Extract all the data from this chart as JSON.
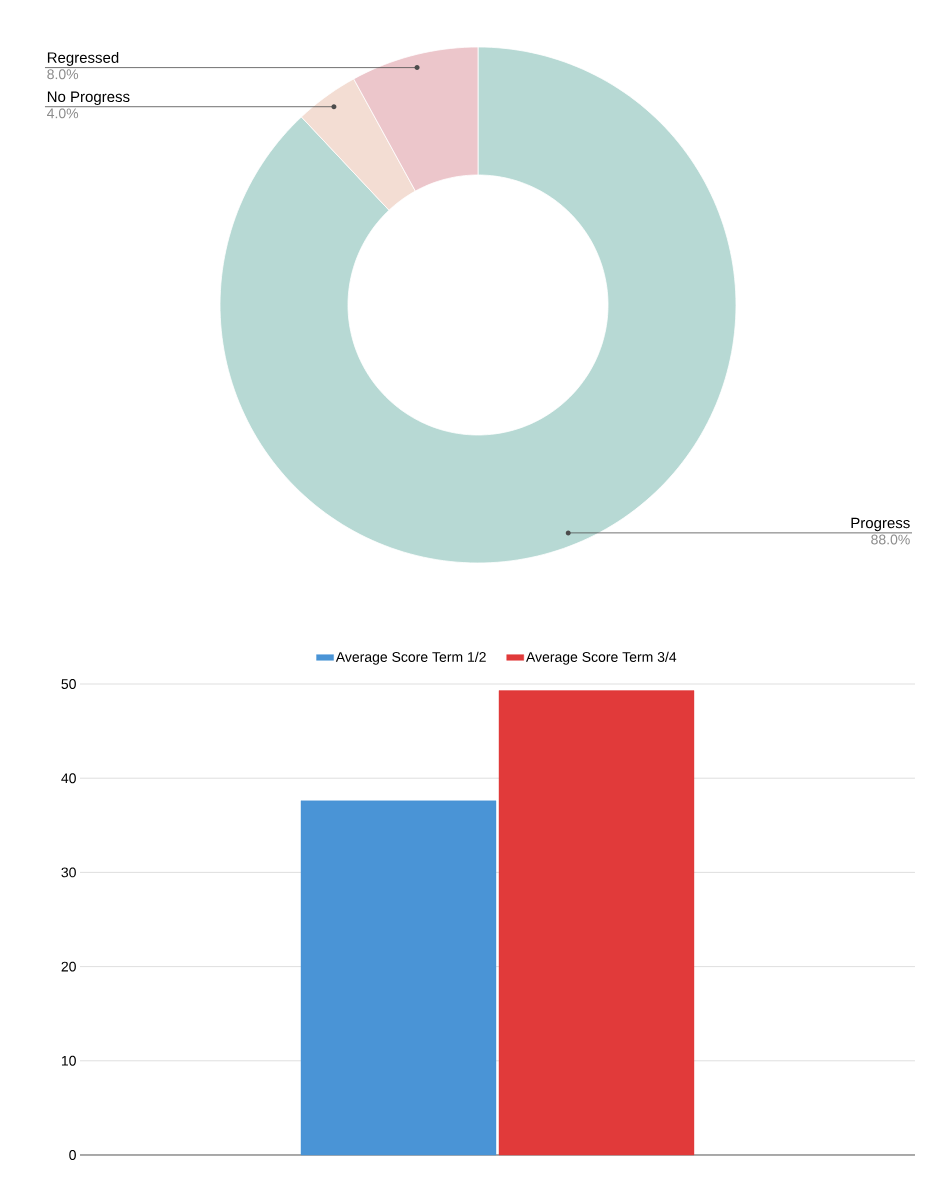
{
  "chart_data": [
    {
      "type": "donut",
      "categories": [
        "Progress",
        "No Progress",
        "Regressed"
      ],
      "values": [
        88,
        4,
        8
      ],
      "colors": [
        "#b7d9d4",
        "#f3ddd3",
        "#ecc6cb"
      ],
      "value_labels": [
        "88.0%",
        "4.0%",
        "8.0%"
      ]
    },
    {
      "type": "bar",
      "categories": [
        null
      ],
      "series": [
        {
          "name": "Average Score Term 1/2",
          "color": "#4a94d6",
          "values": [
            37.6
          ]
        },
        {
          "name": "Average Score Term 3/4",
          "color": "#e13a3a",
          "values": [
            49.3
          ]
        }
      ],
      "ylim": [
        0,
        50
      ],
      "yticks": [
        0,
        10,
        20,
        30,
        40,
        50
      ],
      "grid": "y",
      "legend": "top"
    }
  ]
}
